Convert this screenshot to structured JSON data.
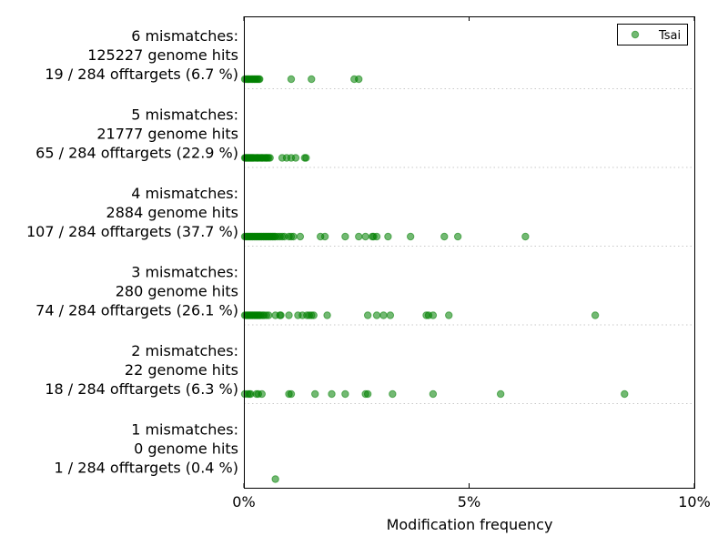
{
  "chart_data": {
    "type": "scatter",
    "xlabel": "Modification frequency",
    "ylabel": "",
    "xlim": [
      0,
      10
    ],
    "x_tick_values": [
      0,
      5,
      10
    ],
    "x_tick_labels": [
      "0%",
      "5%",
      "10%"
    ],
    "grid": false,
    "legend_placement": "top-right",
    "series": [
      {
        "name": "Tsai",
        "color": "#008000",
        "groups": [
          {
            "label_lines": [
              "6 mismatches:",
              "125227 genome hits",
              "19 / 284 offtargets (6.7 %)"
            ],
            "values": [
              0.02,
              0.05,
              0.08,
              0.1,
              0.12,
              0.15,
              0.18,
              0.2,
              0.23,
              0.25,
              0.28,
              0.3,
              0.33,
              0.35,
              1.05,
              1.5,
              2.45,
              2.55
            ]
          },
          {
            "label_lines": [
              "5 mismatches:",
              "21777 genome hits",
              "65 / 284 offtargets (22.9 %)"
            ],
            "values": [
              0.02,
              0.04,
              0.06,
              0.08,
              0.1,
              0.12,
              0.14,
              0.16,
              0.18,
              0.2,
              0.22,
              0.25,
              0.28,
              0.3,
              0.32,
              0.35,
              0.38,
              0.4,
              0.42,
              0.45,
              0.48,
              0.5,
              0.52,
              0.55,
              0.58,
              0.85,
              0.95,
              1.05,
              1.15,
              1.35,
              1.38
            ]
          },
          {
            "label_lines": [
              "4 mismatches:",
              "2884 genome hits",
              "107 / 284 offtargets (37.7 %)"
            ],
            "values": [
              0.02,
              0.05,
              0.08,
              0.1,
              0.13,
              0.15,
              0.18,
              0.2,
              0.23,
              0.25,
              0.28,
              0.3,
              0.33,
              0.35,
              0.38,
              0.4,
              0.43,
              0.45,
              0.48,
              0.5,
              0.53,
              0.55,
              0.58,
              0.6,
              0.63,
              0.65,
              0.68,
              0.7,
              0.75,
              0.8,
              0.85,
              0.9,
              1.0,
              1.05,
              1.1,
              1.25,
              1.7,
              1.8,
              2.25,
              2.55,
              2.7,
              2.85,
              2.88,
              2.95,
              3.2,
              3.7,
              4.45,
              4.75,
              6.25
            ]
          },
          {
            "label_lines": [
              "3 mismatches:",
              "280 genome hits",
              "74 / 284 offtargets (26.1 %)"
            ],
            "values": [
              0.02,
              0.05,
              0.08,
              0.1,
              0.13,
              0.15,
              0.18,
              0.2,
              0.23,
              0.25,
              0.28,
              0.3,
              0.33,
              0.35,
              0.38,
              0.42,
              0.45,
              0.5,
              0.55,
              0.7,
              0.8,
              0.82,
              1.0,
              1.2,
              1.3,
              1.4,
              1.45,
              1.5,
              1.55,
              1.85,
              2.75,
              2.95,
              3.1,
              3.25,
              4.05,
              4.1,
              4.2,
              4.55,
              7.8
            ]
          },
          {
            "label_lines": [
              "2 mismatches:",
              "22 genome hits",
              "18 / 284 offtargets (6.3 %)"
            ],
            "values": [
              0.02,
              0.08,
              0.12,
              0.15,
              0.28,
              0.32,
              0.4,
              1.0,
              1.05,
              1.58,
              1.95,
              2.25,
              2.7,
              2.75,
              3.3,
              4.2,
              5.7,
              8.45
            ]
          },
          {
            "label_lines": [
              "1 mismatches:",
              "0 genome hits",
              "1 / 284 offtargets (0.4 %)"
            ],
            "values": [
              0.7
            ]
          }
        ]
      }
    ]
  }
}
